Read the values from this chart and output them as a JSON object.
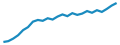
{
  "y_values": [
    3.0,
    3.2,
    3.8,
    4.6,
    5.8,
    6.5,
    7.8,
    8.2,
    8.0,
    8.6,
    8.3,
    9.0,
    9.5,
    9.1,
    9.8,
    9.4,
    9.7,
    10.3,
    9.9,
    10.5,
    10.1,
    10.8,
    11.6,
    12.2
  ],
  "line_color": "#1a8bbf",
  "line_width": 1.6,
  "background_color": "#ffffff"
}
